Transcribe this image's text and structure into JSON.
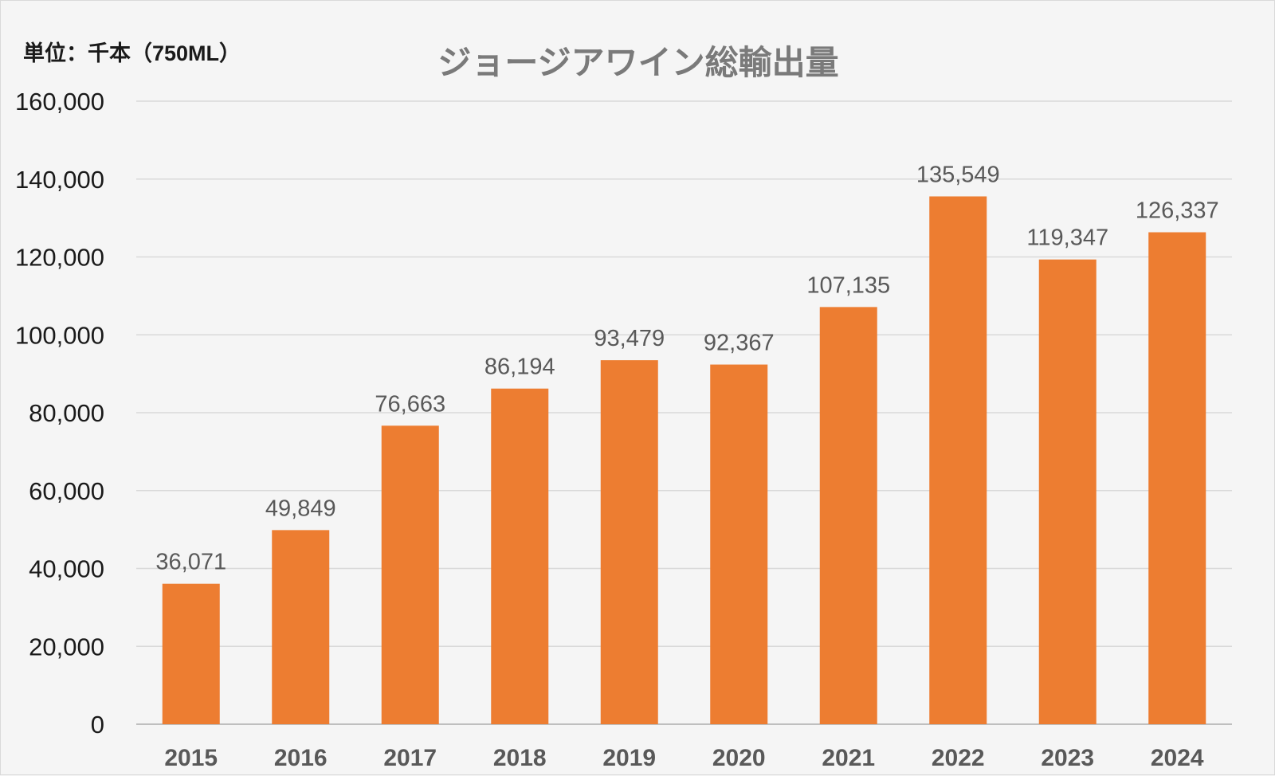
{
  "unit_label": "単位：千本（750ML）",
  "chart_data": {
    "type": "bar",
    "title": "ジョージアワイン総輸出量",
    "unit": "単位：千本（750ML）",
    "categories": [
      "2015",
      "2016",
      "2017",
      "2018",
      "2019",
      "2020",
      "2021",
      "2022",
      "2023",
      "2024"
    ],
    "values": [
      36071,
      49849,
      76663,
      86194,
      93479,
      92367,
      107135,
      135549,
      119347,
      126337
    ],
    "data_labels": [
      "36,071",
      "49,849",
      "76,663",
      "86,194",
      "93,479",
      "92,367",
      "107,135",
      "135,549",
      "119,347",
      "126,337"
    ],
    "yticks": [
      "0",
      "20,000",
      "40,000",
      "60,000",
      "80,000",
      "100,000",
      "120,000",
      "140,000",
      "160,000"
    ],
    "ylim": [
      0,
      160000
    ],
    "grid": true,
    "legend": "none",
    "bar_color": "#ed7d31",
    "grid_color": "#d9d9d9",
    "label_color": "#595959"
  }
}
